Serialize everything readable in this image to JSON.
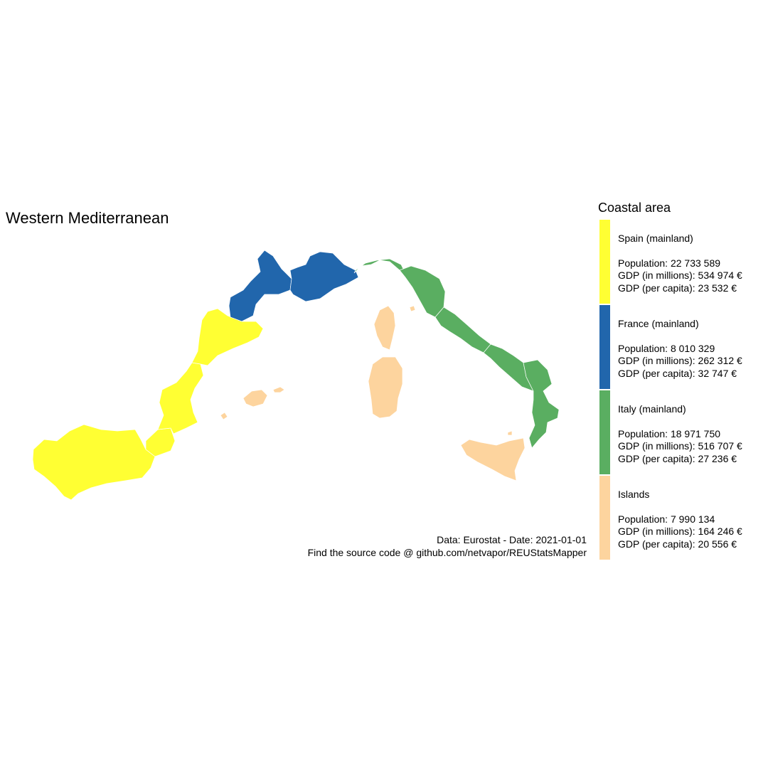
{
  "title": "Western Mediterranean",
  "caption": {
    "line1": "Data: Eurostat - Date: 2021-01-01",
    "line2": "Find the source code @ github.com/netvapor/REUStatsMapper"
  },
  "legend": {
    "title": "Coastal area",
    "entries": [
      {
        "name": "Spain (mainland)",
        "color": "#ffff33",
        "population": "Population:  22 733 589",
        "gdp_millions": "GDP (in millions):  534 974 €",
        "gdp_per_capita": "GDP (per capita):  23 532 €"
      },
      {
        "name": "France (mainland)",
        "color": "#2166ac",
        "population": "Population:  8 010 329",
        "gdp_millions": "GDP (in millions):  262 312 €",
        "gdp_per_capita": "GDP (per capita):  32 747 €"
      },
      {
        "name": "Italy (mainland)",
        "color": "#5aae61",
        "population": "Population:  18 971 750",
        "gdp_millions": "GDP (in millions):  516 707 €",
        "gdp_per_capita": "GDP (per capita):  27 236 €"
      },
      {
        "name": "Islands",
        "color": "#fdd49e",
        "population": "Population:  7 990 134",
        "gdp_millions": "GDP (in millions):  164 246 €",
        "gdp_per_capita": "GDP (per capita):  20 556 €"
      }
    ]
  }
}
